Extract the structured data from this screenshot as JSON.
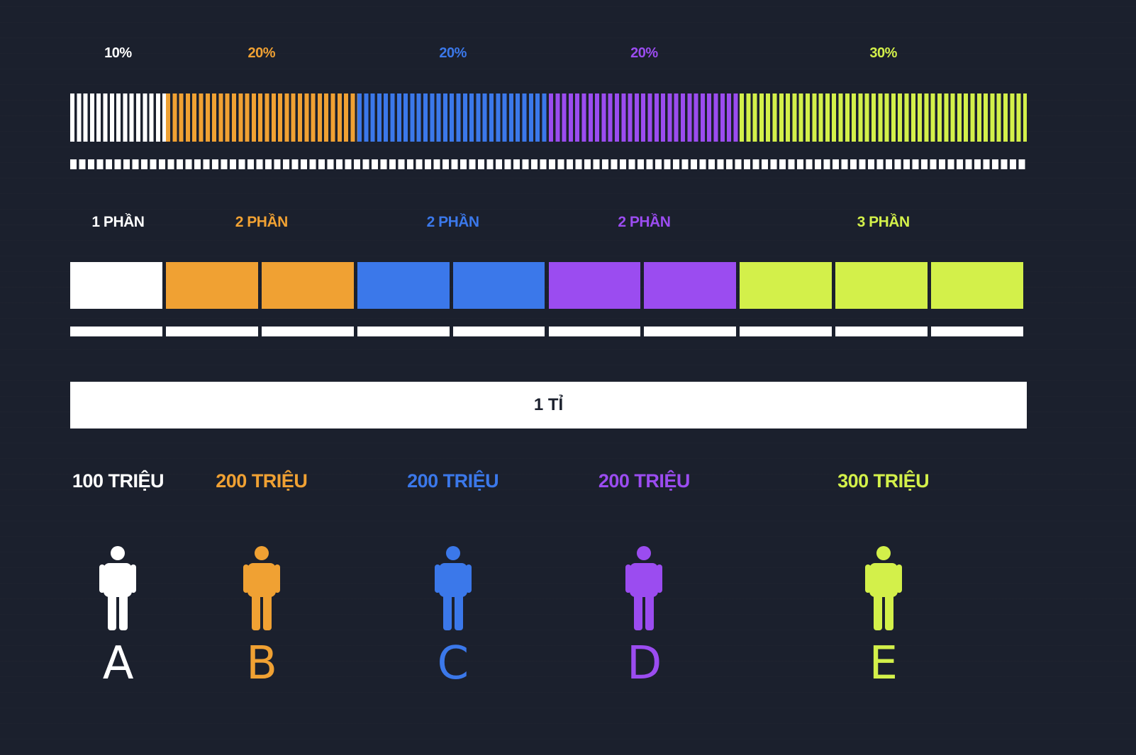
{
  "colors": {
    "background": "#1b202d",
    "A": "#ffffff",
    "B": "#f0a133",
    "C": "#3b78ea",
    "D": "#9b4cf0",
    "E": "#d3f04a"
  },
  "segments": [
    {
      "id": "A",
      "percent_label": "10%",
      "parts_label": "1 PHẦN",
      "parts": 1,
      "amount_label": "100 TRIỆU",
      "letter": "A",
      "color": "#ffffff"
    },
    {
      "id": "B",
      "percent_label": "20%",
      "parts_label": "2 PHẦN",
      "parts": 2,
      "amount_label": "200 TRIỆU",
      "letter": "B",
      "color": "#f0a133"
    },
    {
      "id": "C",
      "percent_label": "20%",
      "parts_label": "2 PHẦN",
      "parts": 2,
      "amount_label": "200 TRIỆU",
      "letter": "C",
      "color": "#3b78ea"
    },
    {
      "id": "D",
      "percent_label": "20%",
      "parts_label": "2 PHẦN",
      "parts": 2,
      "amount_label": "200 TRIỆU",
      "letter": "D",
      "color": "#9b4cf0"
    },
    {
      "id": "E",
      "percent_label": "30%",
      "parts_label": "3 PHẦN",
      "parts": 3,
      "amount_label": "300 TRIỆU",
      "letter": "E",
      "color": "#d3f04a"
    }
  ],
  "total": {
    "label": "1 TỈ"
  },
  "icons": {
    "person": "person-icon"
  }
}
